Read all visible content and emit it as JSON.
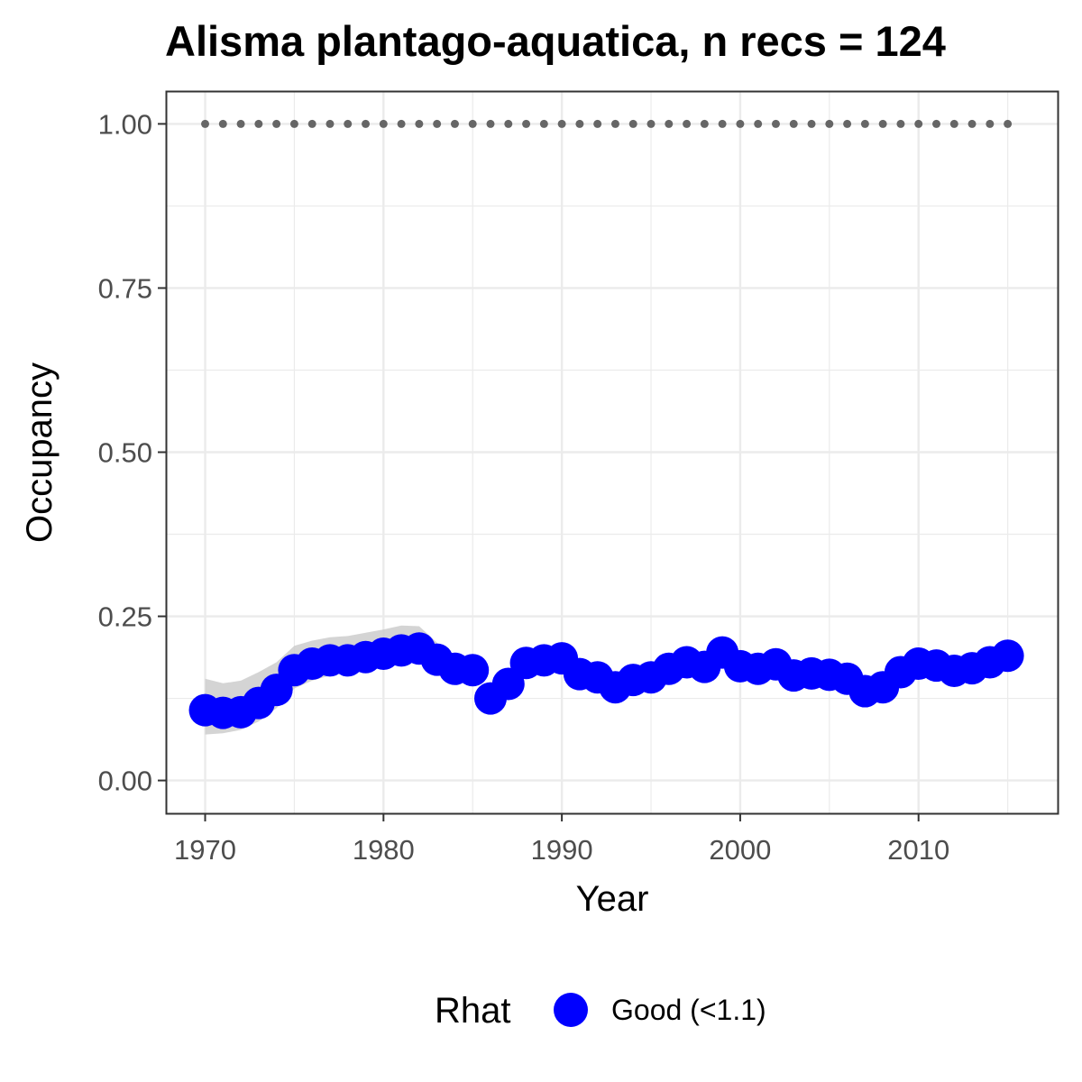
{
  "chart_data": {
    "type": "line",
    "title": "Alisma plantago-aquatica, n recs = 124",
    "xlabel": "Year",
    "ylabel": "Occupancy",
    "xlim": [
      1967.8,
      2017.8
    ],
    "ylim": [
      -0.05,
      1.05
    ],
    "x_ticks": [
      1970,
      1980,
      1990,
      2000,
      2010
    ],
    "x_tick_labels": [
      "1970",
      "1980",
      "1990",
      "2000",
      "2010"
    ],
    "y_ticks": [
      0,
      0.25,
      0.5,
      0.75,
      1
    ],
    "y_tick_labels": [
      "0.00",
      "0.25",
      "0.50",
      "0.75",
      "1.00"
    ],
    "grid": true,
    "legend": {
      "title": "Rhat",
      "position": "bottom",
      "entries": [
        {
          "label": "Good (<1.1)",
          "color": "#0000ff"
        }
      ]
    },
    "colors": {
      "points": "#0000ff",
      "ribbon": "#cccccc",
      "reference_dots": "#666666",
      "grid": "#ebebeb",
      "panel_border": "#333333"
    },
    "series": [
      {
        "type": "points",
        "x": [
          1970,
          1971,
          1972,
          1973,
          1974,
          1975,
          1976,
          1977,
          1978,
          1979,
          1980,
          1981,
          1982,
          1983,
          1984,
          1985,
          1986,
          1987,
          1988,
          1989,
          1990,
          1991,
          1992,
          1993,
          1994,
          1995,
          1996,
          1997,
          1998,
          1999,
          2000,
          2001,
          2002,
          2003,
          2004,
          2005,
          2006,
          2007,
          2008,
          2009,
          2010,
          2011,
          2012,
          2013,
          2014,
          2015
        ],
        "values": [
          0.107,
          0.103,
          0.104,
          0.118,
          0.138,
          0.168,
          0.178,
          0.183,
          0.183,
          0.188,
          0.193,
          0.198,
          0.201,
          0.184,
          0.17,
          0.168,
          0.125,
          0.147,
          0.179,
          0.183,
          0.186,
          0.162,
          0.157,
          0.142,
          0.153,
          0.157,
          0.17,
          0.18,
          0.173,
          0.195,
          0.174,
          0.17,
          0.177,
          0.16,
          0.163,
          0.161,
          0.155,
          0.136,
          0.142,
          0.165,
          0.178,
          0.175,
          0.167,
          0.171,
          0.18,
          0.19
        ]
      },
      {
        "type": "ribbon",
        "x": [
          1970,
          1971,
          1972,
          1973,
          1974,
          1975,
          1976,
          1977,
          1978,
          1979,
          1980,
          1981,
          1982,
          1983
        ],
        "lower": [
          0.07,
          0.072,
          0.077,
          0.09,
          0.11,
          0.14,
          0.152,
          0.16,
          0.165,
          0.172,
          0.176,
          0.178,
          0.18,
          0.175
        ],
        "upper": [
          0.155,
          0.148,
          0.152,
          0.165,
          0.18,
          0.205,
          0.213,
          0.218,
          0.22,
          0.225,
          0.23,
          0.236,
          0.235,
          0.21
        ]
      },
      {
        "type": "reference_points",
        "x": [
          1970,
          1971,
          1972,
          1973,
          1974,
          1975,
          1976,
          1977,
          1978,
          1979,
          1980,
          1981,
          1982,
          1983,
          1984,
          1985,
          1986,
          1987,
          1988,
          1989,
          1990,
          1991,
          1992,
          1993,
          1994,
          1995,
          1996,
          1997,
          1998,
          1999,
          2000,
          2001,
          2002,
          2003,
          2004,
          2005,
          2006,
          2007,
          2008,
          2009,
          2010,
          2011,
          2012,
          2013,
          2014,
          2015
        ],
        "values": [
          1,
          1,
          1,
          1,
          1,
          1,
          1,
          1,
          1,
          1,
          1,
          1,
          1,
          1,
          1,
          1,
          1,
          1,
          1,
          1,
          1,
          1,
          1,
          1,
          1,
          1,
          1,
          1,
          1,
          1,
          1,
          1,
          1,
          1,
          1,
          1,
          1,
          1,
          1,
          1,
          1,
          1,
          1,
          1,
          1,
          1
        ]
      }
    ]
  }
}
